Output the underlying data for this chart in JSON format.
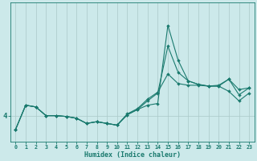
{
  "xlabel": "Humidex (Indice chaleur)",
  "bg_color": "#cce9ea",
  "line_color": "#1a7a6e",
  "grid_color": "#aac8c8",
  "x_values": [
    0,
    1,
    2,
    3,
    4,
    5,
    6,
    7,
    8,
    9,
    10,
    11,
    12,
    13,
    14,
    15,
    16,
    17,
    18,
    19,
    20,
    21,
    22,
    23
  ],
  "series1": [
    3.2,
    4.6,
    4.5,
    4.0,
    4.0,
    3.95,
    3.85,
    3.55,
    3.65,
    3.55,
    3.45,
    4.05,
    4.35,
    4.6,
    4.7,
    9.2,
    7.2,
    6.0,
    5.8,
    5.7,
    5.7,
    5.4,
    4.85,
    5.3
  ],
  "series2": [
    3.2,
    4.6,
    4.5,
    4.0,
    4.0,
    3.95,
    3.85,
    3.55,
    3.65,
    3.55,
    3.45,
    4.05,
    4.35,
    4.85,
    5.3,
    8.0,
    6.5,
    6.0,
    5.8,
    5.7,
    5.7,
    6.1,
    5.2,
    5.6
  ],
  "series3": [
    3.2,
    4.6,
    4.5,
    4.0,
    4.0,
    3.95,
    3.85,
    3.55,
    3.65,
    3.55,
    3.45,
    4.1,
    4.4,
    4.95,
    5.35,
    6.4,
    5.85,
    5.75,
    5.75,
    5.7,
    5.75,
    6.1,
    5.5,
    5.6
  ],
  "ytick_label": "4",
  "ytick_value": 4.0,
  "ylim": [
    2.5,
    10.5
  ],
  "xlim": [
    -0.5,
    23.5
  ],
  "marker_size": 2.0,
  "linewidth": 0.8,
  "xlabel_fontsize": 6.0,
  "xtick_fontsize": 4.8,
  "ytick_fontsize": 6.5
}
